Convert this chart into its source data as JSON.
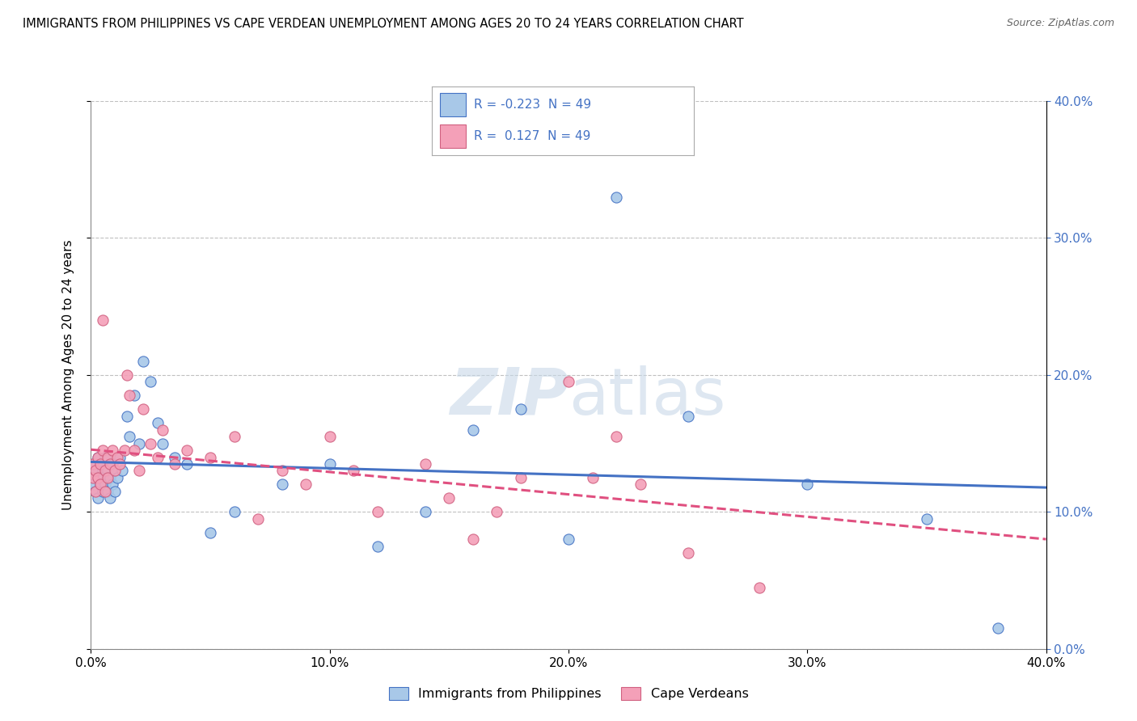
{
  "title": "IMMIGRANTS FROM PHILIPPINES VS CAPE VERDEAN UNEMPLOYMENT AMONG AGES 20 TO 24 YEARS CORRELATION CHART",
  "source": "Source: ZipAtlas.com",
  "ylabel": "Unemployment Among Ages 20 to 24 years",
  "xlim": [
    0.0,
    0.4
  ],
  "ylim": [
    0.0,
    0.4
  ],
  "xtick_values": [
    0.0,
    0.1,
    0.2,
    0.3,
    0.4
  ],
  "ytick_values": [
    0.0,
    0.1,
    0.2,
    0.3,
    0.4
  ],
  "philippines_fill": "#a8c8e8",
  "philippines_edge": "#4472c4",
  "cape_fill": "#f4a0b8",
  "cape_edge": "#d06080",
  "philippines_line_color": "#4472c4",
  "cape_verdean_line_color": "#e05080",
  "right_tick_color": "#4472c4",
  "watermark_color": "#c8d8e8",
  "background_color": "#ffffff",
  "grid_color": "#c0c0c0",
  "phil_x": [
    0.001,
    0.001,
    0.002,
    0.002,
    0.003,
    0.003,
    0.003,
    0.004,
    0.004,
    0.005,
    0.005,
    0.005,
    0.006,
    0.006,
    0.007,
    0.007,
    0.008,
    0.008,
    0.009,
    0.009,
    0.01,
    0.01,
    0.011,
    0.012,
    0.013,
    0.015,
    0.016,
    0.018,
    0.02,
    0.022,
    0.025,
    0.028,
    0.03,
    0.035,
    0.04,
    0.05,
    0.06,
    0.08,
    0.1,
    0.12,
    0.14,
    0.16,
    0.18,
    0.2,
    0.22,
    0.25,
    0.3,
    0.35,
    0.38
  ],
  "phil_y": [
    0.135,
    0.12,
    0.13,
    0.115,
    0.14,
    0.125,
    0.11,
    0.135,
    0.12,
    0.13,
    0.115,
    0.125,
    0.14,
    0.12,
    0.13,
    0.115,
    0.125,
    0.11,
    0.135,
    0.12,
    0.13,
    0.115,
    0.125,
    0.14,
    0.13,
    0.17,
    0.155,
    0.185,
    0.15,
    0.21,
    0.195,
    0.165,
    0.15,
    0.14,
    0.135,
    0.085,
    0.1,
    0.12,
    0.135,
    0.075,
    0.1,
    0.16,
    0.175,
    0.08,
    0.33,
    0.17,
    0.12,
    0.095,
    0.015
  ],
  "cape_x": [
    0.001,
    0.001,
    0.002,
    0.002,
    0.003,
    0.003,
    0.004,
    0.004,
    0.005,
    0.005,
    0.006,
    0.006,
    0.007,
    0.007,
    0.008,
    0.009,
    0.01,
    0.011,
    0.012,
    0.014,
    0.015,
    0.016,
    0.018,
    0.02,
    0.022,
    0.025,
    0.028,
    0.03,
    0.035,
    0.04,
    0.05,
    0.06,
    0.07,
    0.08,
    0.09,
    0.1,
    0.11,
    0.12,
    0.14,
    0.15,
    0.16,
    0.17,
    0.18,
    0.2,
    0.21,
    0.22,
    0.23,
    0.25,
    0.28
  ],
  "cape_y": [
    0.135,
    0.125,
    0.13,
    0.115,
    0.14,
    0.125,
    0.135,
    0.12,
    0.24,
    0.145,
    0.13,
    0.115,
    0.14,
    0.125,
    0.135,
    0.145,
    0.13,
    0.14,
    0.135,
    0.145,
    0.2,
    0.185,
    0.145,
    0.13,
    0.175,
    0.15,
    0.14,
    0.16,
    0.135,
    0.145,
    0.14,
    0.155,
    0.095,
    0.13,
    0.12,
    0.155,
    0.13,
    0.1,
    0.135,
    0.11,
    0.08,
    0.1,
    0.125,
    0.195,
    0.125,
    0.155,
    0.12,
    0.07,
    0.045
  ]
}
